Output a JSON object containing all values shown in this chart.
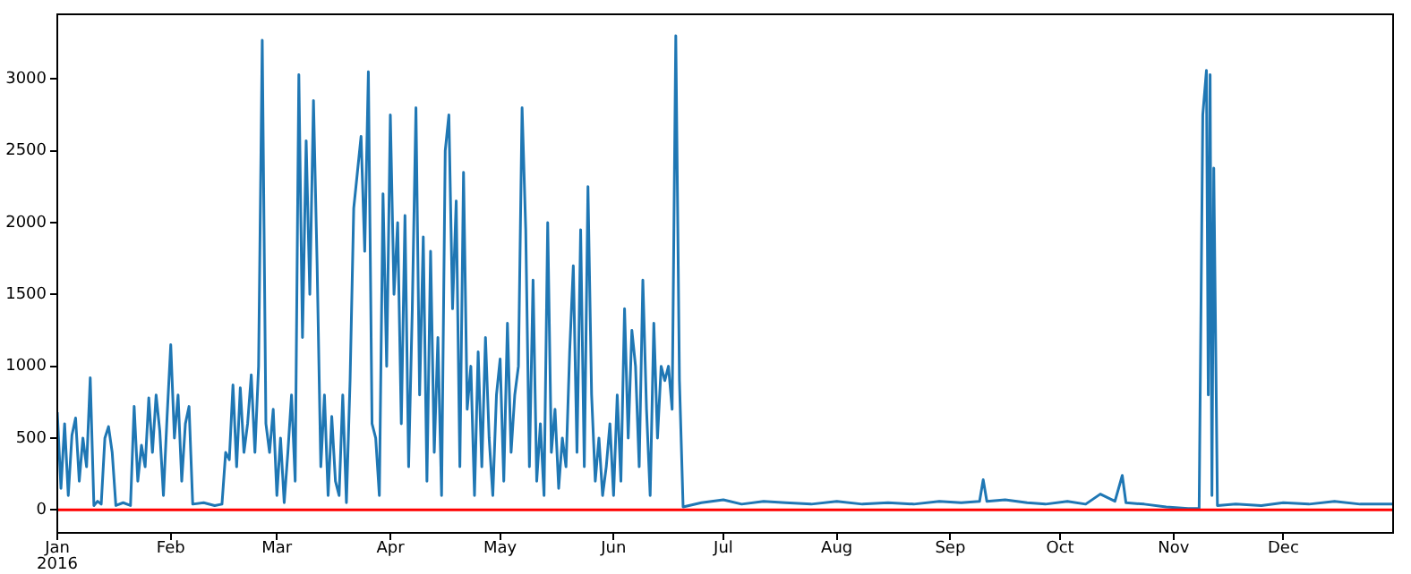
{
  "chart_data": {
    "type": "line",
    "xlim": [
      "2016-01-01",
      "2016-12-31"
    ],
    "ylim": [
      -160,
      3450
    ],
    "xticks": [
      {
        "value": "2016-01-01",
        "label": "Jan\n2016"
      },
      {
        "value": "2016-02-01",
        "label": "Feb"
      },
      {
        "value": "2016-03-01",
        "label": "Mar"
      },
      {
        "value": "2016-04-01",
        "label": "Apr"
      },
      {
        "value": "2016-05-01",
        "label": "May"
      },
      {
        "value": "2016-06-01",
        "label": "Jun"
      },
      {
        "value": "2016-07-01",
        "label": "Jul"
      },
      {
        "value": "2016-08-01",
        "label": "Aug"
      },
      {
        "value": "2016-09-01",
        "label": "Sep"
      },
      {
        "value": "2016-10-01",
        "label": "Oct"
      },
      {
        "value": "2016-11-01",
        "label": "Nov"
      },
      {
        "value": "2016-12-01",
        "label": "Dec"
      }
    ],
    "yticks": [
      0,
      500,
      1000,
      1500,
      2000,
      2500,
      3000
    ],
    "grid": false,
    "legend": false,
    "marker": "none",
    "line_style": "solid",
    "ref_lines": [
      {
        "axis": "y",
        "value": 0,
        "color": "#ff0000"
      }
    ],
    "series": [
      {
        "color": "#1f77b4",
        "x": [
          "2016-01-01",
          "2016-01-02",
          "2016-01-03",
          "2016-01-04",
          "2016-01-05",
          "2016-01-06",
          "2016-01-07",
          "2016-01-08",
          "2016-01-09",
          "2016-01-10",
          "2016-01-11",
          "2016-01-12",
          "2016-01-13",
          "2016-01-14",
          "2016-01-15",
          "2016-01-16",
          "2016-01-17",
          "2016-01-19",
          "2016-01-21",
          "2016-01-22",
          "2016-01-23",
          "2016-01-24",
          "2016-01-25",
          "2016-01-26",
          "2016-01-27",
          "2016-01-28",
          "2016-01-29",
          "2016-01-30",
          "2016-01-31",
          "2016-02-01",
          "2016-02-02",
          "2016-02-03",
          "2016-02-04",
          "2016-02-05",
          "2016-02-06",
          "2016-02-07",
          "2016-02-10",
          "2016-02-13",
          "2016-02-15",
          "2016-02-16",
          "2016-02-17",
          "2016-02-18",
          "2016-02-19",
          "2016-02-20",
          "2016-02-21",
          "2016-02-22",
          "2016-02-23",
          "2016-02-24",
          "2016-02-25",
          "2016-02-26",
          "2016-02-27",
          "2016-02-28",
          "2016-02-29",
          "2016-03-01",
          "2016-03-02",
          "2016-03-03",
          "2016-03-04",
          "2016-03-05",
          "2016-03-06",
          "2016-03-07",
          "2016-03-08",
          "2016-03-09",
          "2016-03-10",
          "2016-03-11",
          "2016-03-12",
          "2016-03-13",
          "2016-03-14",
          "2016-03-15",
          "2016-03-16",
          "2016-03-17",
          "2016-03-18",
          "2016-03-19",
          "2016-03-20",
          "2016-03-21",
          "2016-03-22",
          "2016-03-23",
          "2016-03-24",
          "2016-03-25",
          "2016-03-26",
          "2016-03-27",
          "2016-03-28",
          "2016-03-29",
          "2016-03-30",
          "2016-03-31",
          "2016-04-01",
          "2016-04-02",
          "2016-04-03",
          "2016-04-04",
          "2016-04-05",
          "2016-04-06",
          "2016-04-07",
          "2016-04-08",
          "2016-04-09",
          "2016-04-10",
          "2016-04-11",
          "2016-04-12",
          "2016-04-13",
          "2016-04-14",
          "2016-04-15",
          "2016-04-16",
          "2016-04-17",
          "2016-04-18",
          "2016-04-19",
          "2016-04-20",
          "2016-04-21",
          "2016-04-22",
          "2016-04-23",
          "2016-04-24",
          "2016-04-25",
          "2016-04-26",
          "2016-04-27",
          "2016-04-28",
          "2016-04-29",
          "2016-04-30",
          "2016-05-01",
          "2016-05-02",
          "2016-05-03",
          "2016-05-04",
          "2016-05-05",
          "2016-05-06",
          "2016-05-07",
          "2016-05-08",
          "2016-05-09",
          "2016-05-10",
          "2016-05-11",
          "2016-05-12",
          "2016-05-13",
          "2016-05-14",
          "2016-05-15",
          "2016-05-16",
          "2016-05-17",
          "2016-05-18",
          "2016-05-19",
          "2016-05-20",
          "2016-05-21",
          "2016-05-22",
          "2016-05-23",
          "2016-05-24",
          "2016-05-25",
          "2016-05-26",
          "2016-05-27",
          "2016-05-28",
          "2016-05-29",
          "2016-05-30",
          "2016-05-31",
          "2016-06-01",
          "2016-06-02",
          "2016-06-03",
          "2016-06-04",
          "2016-06-05",
          "2016-06-06",
          "2016-06-07",
          "2016-06-08",
          "2016-06-09",
          "2016-06-10",
          "2016-06-11",
          "2016-06-12",
          "2016-06-13",
          "2016-06-14",
          "2016-06-15",
          "2016-06-16",
          "2016-06-17",
          "2016-06-18",
          "2016-06-19",
          "2016-06-20",
          "2016-06-25",
          "2016-07-01",
          "2016-07-06",
          "2016-07-12",
          "2016-07-18",
          "2016-07-25",
          "2016-08-01",
          "2016-08-08",
          "2016-08-15",
          "2016-08-22",
          "2016-08-29",
          "2016-09-04",
          "2016-09-09",
          "2016-09-10",
          "2016-09-11",
          "2016-09-16",
          "2016-09-22",
          "2016-09-27",
          "2016-10-03",
          "2016-10-08",
          "2016-10-12",
          "2016-10-16",
          "2016-10-18",
          "2016-10-19",
          "2016-10-24",
          "2016-10-30",
          "2016-11-05",
          "2016-11-08",
          "2016-11-09",
          "2016-11-10",
          "2016-11-10T12:00",
          "2016-11-11",
          "2016-11-11T12:00",
          "2016-11-12",
          "2016-11-13",
          "2016-11-18",
          "2016-11-25",
          "2016-12-01",
          "2016-12-08",
          "2016-12-15",
          "2016-12-22",
          "2016-12-31"
        ],
        "values": [
          680,
          150,
          600,
          100,
          520,
          640,
          200,
          500,
          300,
          920,
          30,
          60,
          40,
          500,
          580,
          400,
          30,
          50,
          30,
          720,
          200,
          450,
          300,
          780,
          400,
          800,
          550,
          100,
          650,
          1150,
          500,
          800,
          200,
          600,
          720,
          40,
          50,
          30,
          40,
          400,
          350,
          870,
          300,
          850,
          400,
          600,
          940,
          400,
          1000,
          3270,
          600,
          400,
          700,
          100,
          500,
          50,
          400,
          800,
          200,
          3030,
          1200,
          2570,
          1500,
          2850,
          1700,
          300,
          800,
          100,
          650,
          200,
          100,
          800,
          50,
          900,
          2100,
          2350,
          2600,
          1800,
          3050,
          600,
          500,
          100,
          2200,
          1000,
          2750,
          1500,
          2000,
          600,
          2050,
          300,
          1400,
          2800,
          800,
          1900,
          200,
          1800,
          400,
          1200,
          100,
          2500,
          2750,
          1400,
          2150,
          300,
          2350,
          700,
          1000,
          100,
          1100,
          300,
          1200,
          500,
          100,
          800,
          1050,
          200,
          1300,
          400,
          800,
          1000,
          2800,
          1950,
          300,
          1600,
          200,
          600,
          100,
          2000,
          400,
          700,
          150,
          500,
          300,
          1100,
          1700,
          400,
          1950,
          300,
          2250,
          800,
          200,
          500,
          100,
          300,
          600,
          100,
          800,
          200,
          1400,
          500,
          1250,
          1000,
          300,
          1600,
          700,
          100,
          1300,
          500,
          1000,
          900,
          1000,
          700,
          3300,
          900,
          20,
          50,
          70,
          40,
          60,
          50,
          40,
          60,
          40,
          50,
          40,
          60,
          50,
          60,
          210,
          60,
          70,
          50,
          40,
          60,
          40,
          110,
          60,
          240,
          50,
          40,
          20,
          10,
          10,
          2750,
          3060,
          800,
          3030,
          100,
          2380,
          30,
          40,
          30,
          50,
          40,
          60,
          40,
          40
        ]
      }
    ]
  }
}
